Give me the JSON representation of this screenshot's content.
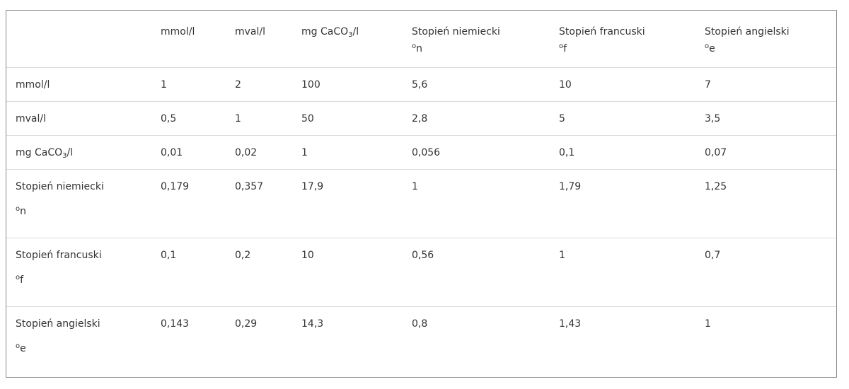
{
  "columns": [
    {
      "label": "",
      "sub": "",
      "suffix": "",
      "unit": ""
    },
    {
      "label": "mmol/l",
      "sub": "",
      "suffix": "",
      "unit": ""
    },
    {
      "label": "mval/l",
      "sub": "",
      "suffix": "",
      "unit": ""
    },
    {
      "label": "mg CaCO",
      "sub": "3",
      "suffix": "/l",
      "unit": ""
    },
    {
      "label": "Stopień niemiecki",
      "sub": "",
      "suffix": "",
      "unit": "n"
    },
    {
      "label": "Stopień francuski",
      "sub": "",
      "suffix": "",
      "unit": "f"
    },
    {
      "label": "Stopień angielski",
      "sub": "",
      "suffix": "",
      "unit": "e"
    }
  ],
  "degree_symbol": "o",
  "rows": [
    {
      "label": "mmol/l",
      "sub": "",
      "suffix": "",
      "unit": "",
      "values": [
        "1",
        "2",
        "100",
        "5,6",
        "10",
        "7"
      ]
    },
    {
      "label": "mval/l",
      "sub": "",
      "suffix": "",
      "unit": "",
      "values": [
        "0,5",
        "1",
        "50",
        "2,8",
        "5",
        "3,5"
      ]
    },
    {
      "label": "mg CaCO",
      "sub": "3",
      "suffix": "/l",
      "unit": "",
      "values": [
        "0,01",
        "0,02",
        "1",
        "0,056",
        "0,1",
        "0,07"
      ]
    },
    {
      "label": "Stopień niemiecki",
      "sub": "",
      "suffix": "",
      "unit": "n",
      "values": [
        "0,179",
        "0,357",
        "17,9",
        "1",
        "1,79",
        "1,25"
      ]
    },
    {
      "label": "Stopień francuski",
      "sub": "",
      "suffix": "",
      "unit": "f",
      "values": [
        "0,1",
        "0,2",
        "10",
        "0,56",
        "1",
        "0,7"
      ]
    },
    {
      "label": "Stopień angielski",
      "sub": "",
      "suffix": "",
      "unit": "e",
      "values": [
        "0,143",
        "0,29",
        "14,3",
        "0,8",
        "1,43",
        "1"
      ]
    }
  ]
}
